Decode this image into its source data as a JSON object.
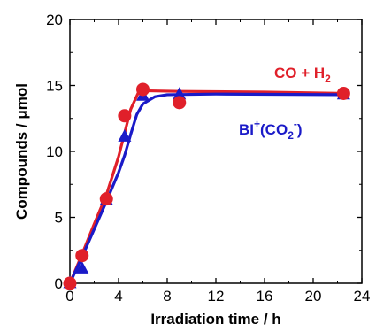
{
  "chart_data": {
    "type": "scatter",
    "xlabel": "Irradiation time / h",
    "ylabel": "Compounds / μmol",
    "xlim": [
      0,
      24
    ],
    "ylim": [
      0,
      20
    ],
    "xticks": [
      0,
      4,
      8,
      12,
      16,
      20,
      24
    ],
    "yticks": [
      0,
      5,
      10,
      15,
      20
    ],
    "grid": false,
    "series": [
      {
        "name": "CO + H2",
        "color": "#e0202a",
        "marker": "circle",
        "points": [
          [
            0,
            0.0
          ],
          [
            1,
            2.1
          ],
          [
            3,
            6.4
          ],
          [
            4.5,
            12.7
          ],
          [
            6,
            14.7
          ],
          [
            9,
            13.7
          ],
          [
            22.5,
            14.4
          ]
        ],
        "fit": [
          [
            0,
            0
          ],
          [
            1,
            2.2
          ],
          [
            2,
            4.5
          ],
          [
            3,
            6.7
          ],
          [
            4,
            9.6
          ],
          [
            5,
            13.2
          ],
          [
            5.6,
            14.4
          ],
          [
            6,
            14.6
          ],
          [
            9,
            14.55
          ],
          [
            16,
            14.5
          ],
          [
            22.5,
            14.4
          ]
        ]
      },
      {
        "name": "BI+(CO2-)",
        "color": "#1a1ac8",
        "marker": "triangle",
        "points": [
          [
            0,
            0.0
          ],
          [
            1,
            1.1
          ],
          [
            3,
            6.3
          ],
          [
            4.5,
            11.1
          ],
          [
            6,
            14.2
          ],
          [
            9,
            14.3
          ],
          [
            22.5,
            14.3
          ]
        ],
        "fit": [
          [
            0,
            0
          ],
          [
            1,
            2.0
          ],
          [
            2,
            4.1
          ],
          [
            3,
            6.2
          ],
          [
            4,
            8.4
          ],
          [
            4.5,
            9.7
          ],
          [
            5,
            11.3
          ],
          [
            5.5,
            12.8
          ],
          [
            6,
            13.6
          ],
          [
            7,
            14.15
          ],
          [
            8,
            14.3
          ],
          [
            12,
            14.35
          ],
          [
            22.5,
            14.3
          ]
        ]
      }
    ],
    "annotations": {
      "co_h2": {
        "main": "CO + H",
        "sub": "2"
      },
      "bi": {
        "main": "BI",
        "sup": "+",
        "open": "(CO",
        "sub": "2",
        "sup2": "-",
        "close": ")"
      }
    }
  }
}
